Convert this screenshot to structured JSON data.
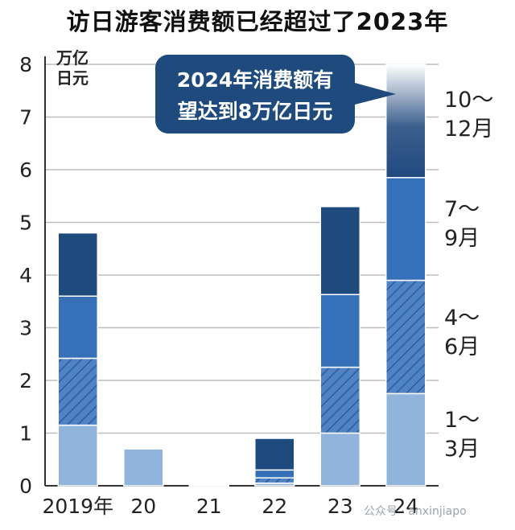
{
  "title": "访日游客消费额已经超过了2023年",
  "unit_line1": "万亿",
  "unit_line2": "日元",
  "callout_line1": "2024年消费额有",
  "callout_line2": "望达到8万亿日元",
  "watermark": "公众号 · anxinjiapo",
  "segment_labels": [
    {
      "line1": "10～",
      "line2": "12月"
    },
    {
      "line1": "7～",
      "line2": "9月"
    },
    {
      "line1": "4～",
      "line2": "6月"
    },
    {
      "line1": "1～",
      "line2": "3月"
    }
  ],
  "colors": {
    "q1": "#90b4dc",
    "q2": "#4f83c6",
    "q3": "#3570b8",
    "q4": "#1f4a7e",
    "callout": "#1f4a7e",
    "grid": "#bdbdbd"
  },
  "chart_data": {
    "type": "bar",
    "stacked": true,
    "title": "访日游客消费额已经超过了2023年",
    "ylabel": "万亿日元",
    "xlabel": "",
    "ylim": [
      0,
      8
    ],
    "yticks": [
      0,
      1,
      2,
      3,
      4,
      5,
      6,
      7,
      8
    ],
    "grid": true,
    "categories": [
      "2019年",
      "20",
      "21",
      "22",
      "23",
      "24"
    ],
    "series": [
      {
        "name": "1～3月",
        "values": [
          1.15,
          0.7,
          0.02,
          0.05,
          1.0,
          1.75
        ]
      },
      {
        "name": "4～6月",
        "values": [
          1.27,
          0.0,
          0.0,
          0.1,
          1.25,
          2.15
        ]
      },
      {
        "name": "7～9月",
        "values": [
          1.18,
          0.0,
          0.0,
          0.15,
          1.38,
          1.95
        ]
      },
      {
        "name": "10～12月",
        "values": [
          1.2,
          0.0,
          0.0,
          0.6,
          1.67,
          2.15
        ]
      }
    ],
    "annotation": "2024年消费额有望达到8万亿日元"
  }
}
